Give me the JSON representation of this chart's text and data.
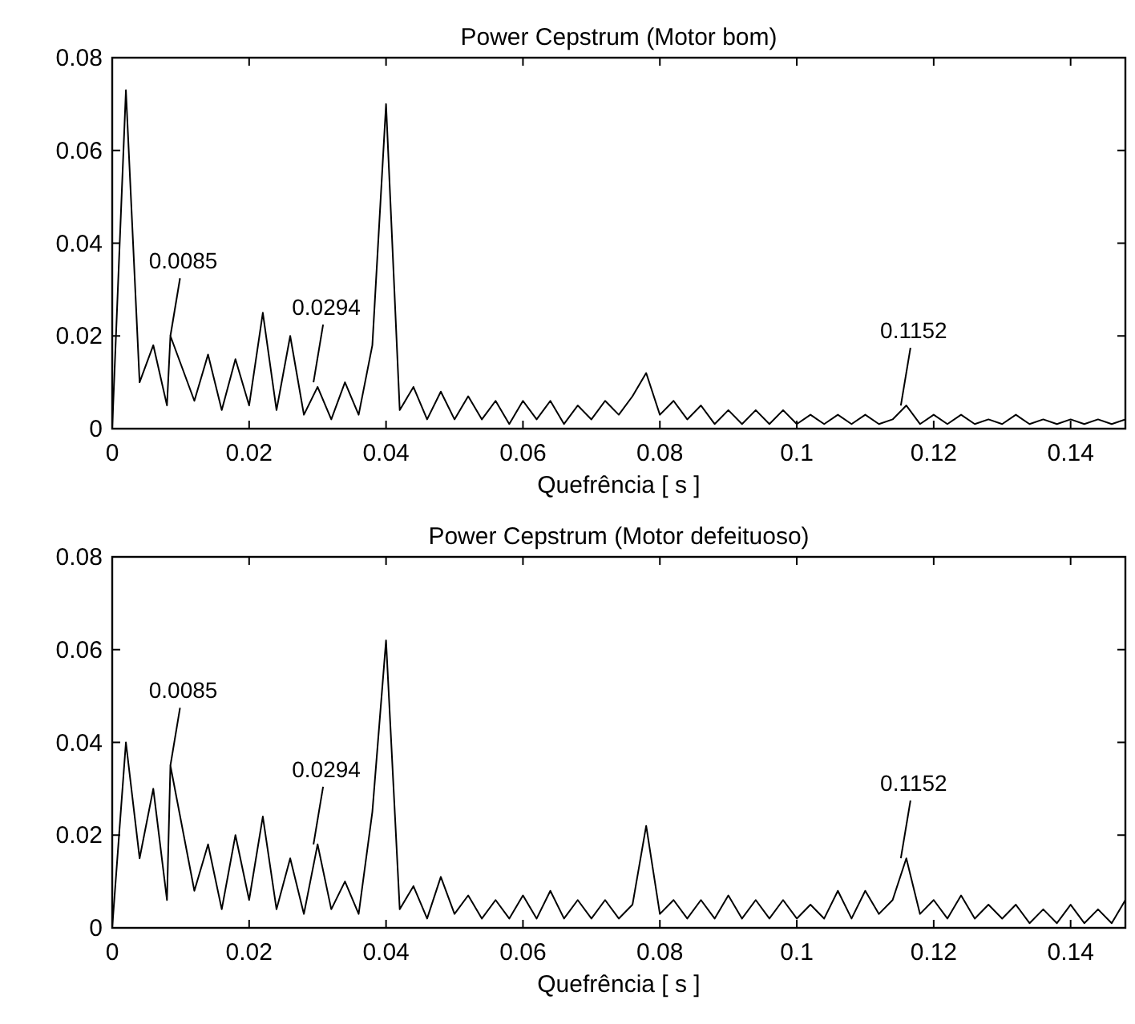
{
  "chart_data": [
    {
      "type": "line",
      "title": "Power Cepstrum (Motor bom)",
      "xlabel": "Quefrência [ s ]",
      "xlim": [
        0,
        0.148
      ],
      "ylim": [
        0,
        0.08
      ],
      "xticks": [
        0,
        0.02,
        0.04,
        0.06,
        0.08,
        0.1,
        0.12,
        0.14
      ],
      "yticks": [
        0,
        0.02,
        0.04,
        0.06,
        0.08
      ],
      "grid": false,
      "annotations": [
        {
          "text": "0.0085",
          "x": 0.0085,
          "y": 0.02
        },
        {
          "text": "0.0294",
          "x": 0.0294,
          "y": 0.01
        },
        {
          "text": "0.1152",
          "x": 0.1152,
          "y": 0.005
        }
      ],
      "series": [
        {
          "color": "#000000",
          "x": [
            0,
            0.002,
            0.004,
            0.006,
            0.008,
            0.0085,
            0.012,
            0.014,
            0.016,
            0.018,
            0.02,
            0.022,
            0.024,
            0.026,
            0.028,
            0.03,
            0.032,
            0.034,
            0.036,
            0.038,
            0.04,
            0.042,
            0.044,
            0.046,
            0.048,
            0.05,
            0.052,
            0.054,
            0.056,
            0.058,
            0.06,
            0.062,
            0.064,
            0.066,
            0.068,
            0.07,
            0.072,
            0.074,
            0.076,
            0.078,
            0.08,
            0.082,
            0.084,
            0.086,
            0.088,
            0.09,
            0.092,
            0.094,
            0.096,
            0.098,
            0.1,
            0.102,
            0.104,
            0.106,
            0.108,
            0.11,
            0.112,
            0.114,
            0.116,
            0.118,
            0.12,
            0.122,
            0.124,
            0.126,
            0.128,
            0.13,
            0.132,
            0.134,
            0.136,
            0.138,
            0.14,
            0.142,
            0.144,
            0.146,
            0.148
          ],
          "values": [
            0,
            0.073,
            0.01,
            0.018,
            0.005,
            0.02,
            0.006,
            0.016,
            0.004,
            0.015,
            0.005,
            0.025,
            0.004,
            0.02,
            0.003,
            0.009,
            0.002,
            0.01,
            0.003,
            0.018,
            0.07,
            0.004,
            0.009,
            0.002,
            0.008,
            0.002,
            0.007,
            0.002,
            0.006,
            0.001,
            0.006,
            0.002,
            0.006,
            0.001,
            0.005,
            0.002,
            0.006,
            0.003,
            0.007,
            0.012,
            0.003,
            0.006,
            0.002,
            0.005,
            0.001,
            0.004,
            0.001,
            0.004,
            0.001,
            0.004,
            0.001,
            0.003,
            0.001,
            0.003,
            0.001,
            0.003,
            0.001,
            0.002,
            0.005,
            0.001,
            0.003,
            0.001,
            0.003,
            0.001,
            0.002,
            0.001,
            0.003,
            0.001,
            0.002,
            0.001,
            0.002,
            0.001,
            0.002,
            0.001,
            0.002
          ]
        }
      ]
    },
    {
      "type": "line",
      "title": "Power Cepstrum (Motor defeituoso)",
      "xlabel": "Quefrência [ s ]",
      "xlim": [
        0,
        0.148
      ],
      "ylim": [
        0,
        0.08
      ],
      "xticks": [
        0,
        0.02,
        0.04,
        0.06,
        0.08,
        0.1,
        0.12,
        0.14
      ],
      "yticks": [
        0,
        0.02,
        0.04,
        0.06,
        0.08
      ],
      "grid": false,
      "annotations": [
        {
          "text": "0.0085",
          "x": 0.0085,
          "y": 0.035
        },
        {
          "text": "0.0294",
          "x": 0.0294,
          "y": 0.018
        },
        {
          "text": "0.1152",
          "x": 0.1152,
          "y": 0.015
        }
      ],
      "series": [
        {
          "color": "#000000",
          "x": [
            0,
            0.002,
            0.004,
            0.006,
            0.008,
            0.0085,
            0.012,
            0.014,
            0.016,
            0.018,
            0.02,
            0.022,
            0.024,
            0.026,
            0.028,
            0.03,
            0.032,
            0.034,
            0.036,
            0.038,
            0.04,
            0.042,
            0.044,
            0.046,
            0.048,
            0.05,
            0.052,
            0.054,
            0.056,
            0.058,
            0.06,
            0.062,
            0.064,
            0.066,
            0.068,
            0.07,
            0.072,
            0.074,
            0.076,
            0.078,
            0.08,
            0.082,
            0.084,
            0.086,
            0.088,
            0.09,
            0.092,
            0.094,
            0.096,
            0.098,
            0.1,
            0.102,
            0.104,
            0.106,
            0.108,
            0.11,
            0.112,
            0.114,
            0.116,
            0.118,
            0.12,
            0.122,
            0.124,
            0.126,
            0.128,
            0.13,
            0.132,
            0.134,
            0.136,
            0.138,
            0.14,
            0.142,
            0.144,
            0.146,
            0.148
          ],
          "values": [
            0,
            0.04,
            0.015,
            0.03,
            0.006,
            0.035,
            0.008,
            0.018,
            0.004,
            0.02,
            0.006,
            0.024,
            0.004,
            0.015,
            0.003,
            0.018,
            0.004,
            0.01,
            0.003,
            0.025,
            0.062,
            0.004,
            0.009,
            0.002,
            0.011,
            0.003,
            0.007,
            0.002,
            0.006,
            0.002,
            0.007,
            0.002,
            0.008,
            0.002,
            0.006,
            0.002,
            0.006,
            0.002,
            0.005,
            0.022,
            0.003,
            0.006,
            0.002,
            0.006,
            0.002,
            0.007,
            0.002,
            0.006,
            0.002,
            0.006,
            0.002,
            0.005,
            0.002,
            0.008,
            0.002,
            0.008,
            0.003,
            0.006,
            0.015,
            0.003,
            0.006,
            0.002,
            0.007,
            0.002,
            0.005,
            0.002,
            0.005,
            0.001,
            0.004,
            0.001,
            0.005,
            0.001,
            0.004,
            0.001,
            0.006
          ]
        }
      ]
    }
  ]
}
